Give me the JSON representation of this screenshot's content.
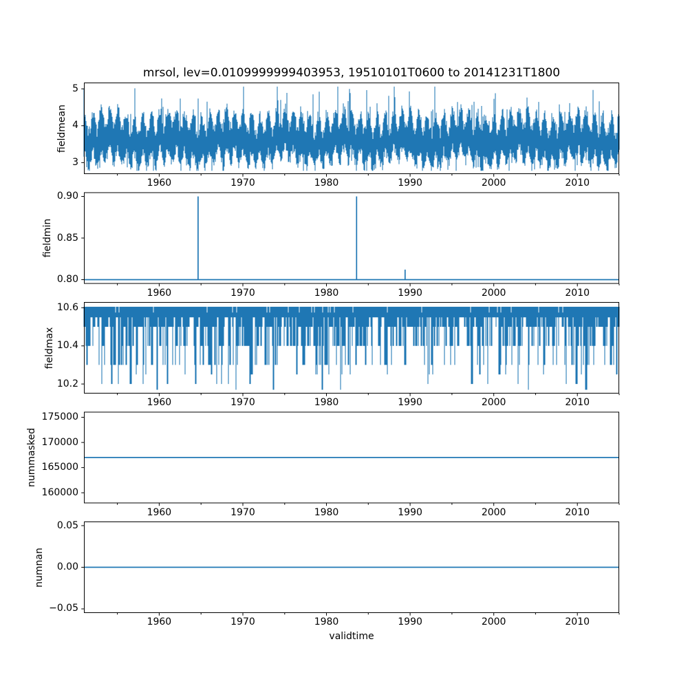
{
  "title": "mrsol, lev=0.0109999999403953, 19510101T0600 to 20141231T1800",
  "colors": {
    "line": "#1f77b4",
    "axis": "#000000",
    "background": "#ffffff",
    "text": "#000000"
  },
  "x_axis": {
    "label": "validtime",
    "xlim": [
      1951.0,
      2015.0
    ],
    "major_ticks": [
      1960,
      1970,
      1980,
      1990,
      2000,
      2010
    ],
    "major_tick_labels": [
      "1960",
      "1970",
      "1980",
      "1990",
      "2000",
      "2010"
    ],
    "minor_ticks": [
      1955,
      1965,
      1975,
      1985,
      1995,
      2005,
      2015
    ]
  },
  "chart_data": [
    {
      "name": "fieldmean",
      "type": "line",
      "ylabel": "fieldmean",
      "ylim": [
        2.69,
        5.17
      ],
      "yticks": [
        3,
        4,
        5
      ],
      "ytick_labels": [
        "3",
        "4",
        "5"
      ],
      "x_range_years": [
        1951.0,
        2015.0
      ],
      "series": {
        "kind": "noisy_seasonal_band",
        "seed": 7,
        "description": "dense 6-hourly series oscillating annually",
        "top_base": 3.95,
        "seasonal_amp": 0.26,
        "top_jitter": 0.32,
        "peak_prob": 0.07,
        "peak_extra_max": 0.62,
        "max": 5.06,
        "bot_base": 3.28,
        "bot_jitter": 0.3,
        "dip_prob": 0.06,
        "min": 2.78
      }
    },
    {
      "name": "fieldmin",
      "type": "line",
      "ylabel": "fieldmin",
      "ylim": [
        0.795,
        0.905
      ],
      "yticks": [
        0.8,
        0.85,
        0.9
      ],
      "ytick_labels": [
        "0.80",
        "0.85",
        "0.90"
      ],
      "series": {
        "kind": "constant_with_spikes",
        "baseline": 0.8,
        "spikes": [
          {
            "year": 1964.65,
            "value": 0.9
          },
          {
            "year": 1983.6,
            "value": 0.9
          },
          {
            "year": 1989.4,
            "value": 0.812
          }
        ]
      }
    },
    {
      "name": "fieldmax",
      "type": "line",
      "ylabel": "fieldmax",
      "ylim": [
        10.15,
        10.63
      ],
      "yticks": [
        10.2,
        10.4,
        10.6
      ],
      "ytick_labels": [
        "10.2",
        "10.4",
        "10.6"
      ],
      "series": {
        "kind": "quantized_top_band",
        "seed": 13,
        "top": 10.6,
        "top_gap_prob": 0.03,
        "levels": [
          10.55,
          10.5,
          10.4,
          10.3,
          10.25,
          10.2,
          10.17
        ],
        "level_weights": [
          0.16,
          0.32,
          0.26,
          0.16,
          0.04,
          0.045,
          0.015
        ]
      }
    },
    {
      "name": "nummasked",
      "type": "line",
      "ylabel": "nummasked",
      "ylim": [
        157900,
        176100
      ],
      "yticks": [
        160000,
        165000,
        170000,
        175000
      ],
      "ytick_labels": [
        "160000",
        "165000",
        "170000",
        "175000"
      ],
      "series": {
        "kind": "constant",
        "value": 167000
      }
    },
    {
      "name": "numnan",
      "type": "line",
      "ylabel": "numnan",
      "ylim": [
        -0.055,
        0.055
      ],
      "yticks": [
        -0.05,
        0.0,
        0.05
      ],
      "ytick_labels": [
        "−0.05",
        "0.00",
        "0.05"
      ],
      "series": {
        "kind": "constant",
        "value": 0.0
      }
    }
  ]
}
